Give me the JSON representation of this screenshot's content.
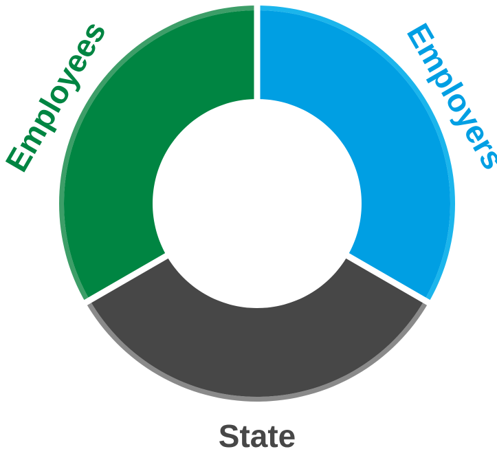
{
  "chart_data": {
    "type": "pie",
    "variant": "donut",
    "categories": [
      "Employers",
      "State",
      "Employees"
    ],
    "values": [
      33.3,
      33.3,
      33.3
    ],
    "labels": [
      "Employers",
      "State",
      "Employees"
    ],
    "colors": [
      "#009FE3",
      "#474747",
      "#008542"
    ],
    "edge_colors": [
      "#1BB5EC",
      "#8A8A8A",
      "#3D9E68"
    ],
    "start_angle_deg": 0,
    "direction": "clockwise",
    "legend": "none",
    "title": ""
  }
}
